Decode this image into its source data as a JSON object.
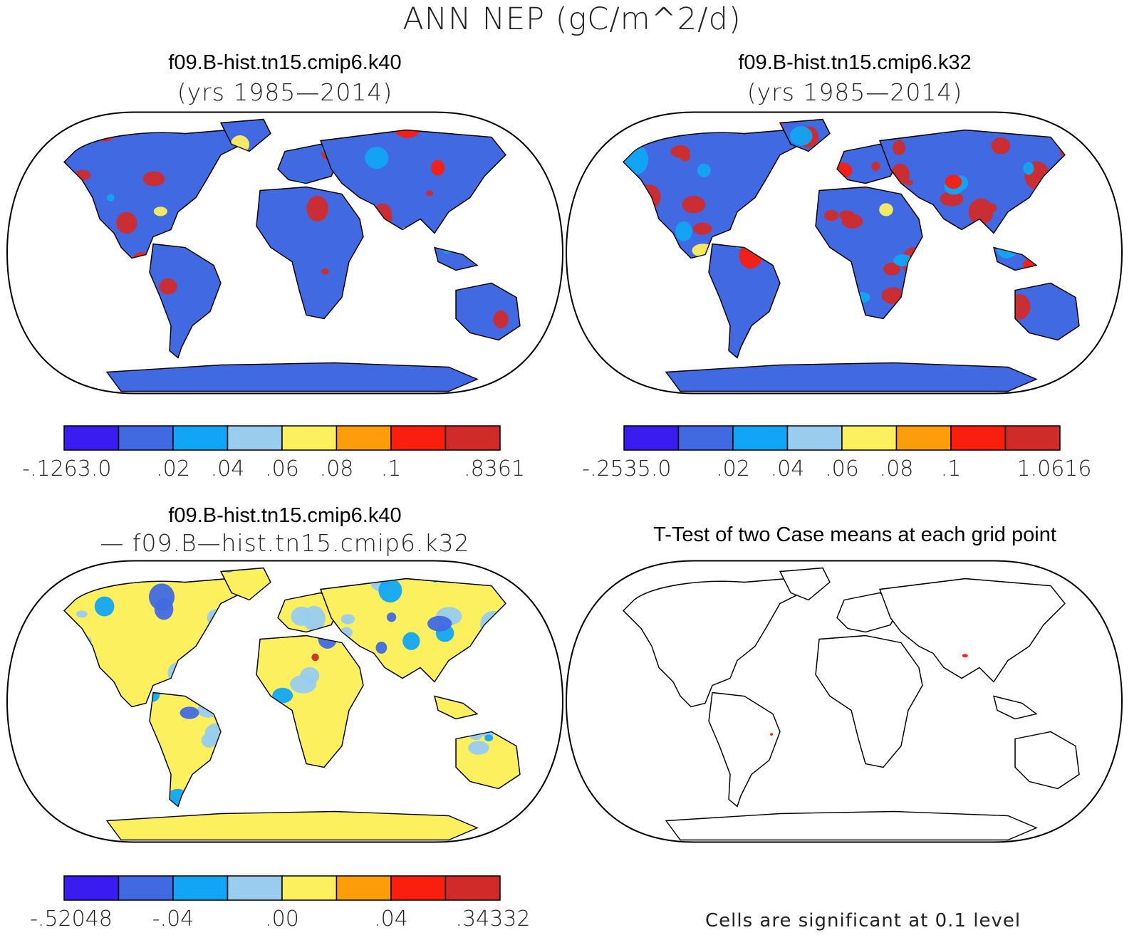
{
  "figure_title": "ANN NEP (gC/m^2/d)",
  "panels": [
    {
      "id": "case1",
      "title": "f09.B-hist.tn15.cmip6.k40",
      "subtitle": "(yrs 1985—2014)",
      "colorbar": {
        "colors": [
          "#3b1cf0",
          "#4169e1",
          "#11a6f5",
          "#99ccef",
          "#fdf05e",
          "#fd9d0a",
          "#f91e0e",
          "#d02b29"
        ],
        "labels": [
          "-.1263.0",
          ".02",
          ".04",
          ".06",
          ".08",
          ".1",
          ".8361"
        ]
      }
    },
    {
      "id": "case2",
      "title": "f09.B-hist.tn15.cmip6.k32",
      "subtitle": "(yrs 1985—2014)",
      "colorbar": {
        "colors": [
          "#3b1cf0",
          "#4169e1",
          "#11a6f5",
          "#99ccef",
          "#fdf05e",
          "#fd9d0a",
          "#f91e0e",
          "#d02b29"
        ],
        "labels": [
          "-.2535.0",
          ".02",
          ".04",
          ".06",
          ".08",
          ".1",
          "1.0616"
        ]
      }
    },
    {
      "id": "difference",
      "title": "f09.B-hist.tn15.cmip6.k40",
      "subtitle": "— f09.B—hist.tn15.cmip6.k32",
      "colorbar": {
        "colors": [
          "#3b1cf0",
          "#4169e1",
          "#11a6f5",
          "#99ccef",
          "#fdf05e",
          "#fd9d0a",
          "#f91e0e",
          "#d02b29"
        ],
        "labels": [
          "-.52048",
          "-.04",
          ".00",
          ".04",
          ".34332"
        ]
      }
    },
    {
      "id": "ttest",
      "title": "T-Test of two Case means at each grid point",
      "note": "Cells are significant at 0.1 level"
    }
  ]
}
